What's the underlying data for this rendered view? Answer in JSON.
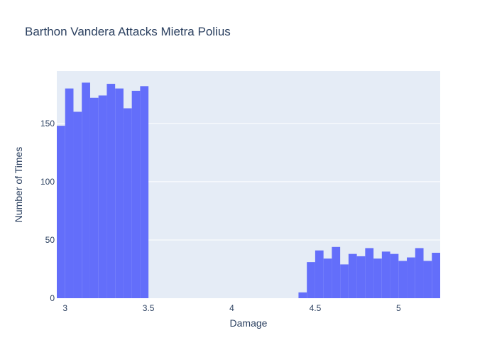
{
  "chart_data": {
    "type": "bar",
    "title": "Barthon Vandera Attacks Mietra Polius",
    "xlabel": "Damage",
    "ylabel": "Number of Times",
    "xlim": [
      2.95,
      5.25
    ],
    "ylim": [
      0,
      195
    ],
    "bin_width": 0.05,
    "bins": [
      {
        "x": 2.95,
        "y": 148
      },
      {
        "x": 3.0,
        "y": 180
      },
      {
        "x": 3.05,
        "y": 160
      },
      {
        "x": 3.1,
        "y": 185
      },
      {
        "x": 3.15,
        "y": 172
      },
      {
        "x": 3.2,
        "y": 174
      },
      {
        "x": 3.25,
        "y": 184
      },
      {
        "x": 3.3,
        "y": 180
      },
      {
        "x": 3.35,
        "y": 163
      },
      {
        "x": 3.4,
        "y": 178
      },
      {
        "x": 3.45,
        "y": 182
      },
      {
        "x": 4.4,
        "y": 5
      },
      {
        "x": 4.45,
        "y": 31
      },
      {
        "x": 4.5,
        "y": 41
      },
      {
        "x": 4.55,
        "y": 34
      },
      {
        "x": 4.6,
        "y": 44
      },
      {
        "x": 4.65,
        "y": 29
      },
      {
        "x": 4.7,
        "y": 38
      },
      {
        "x": 4.75,
        "y": 36
      },
      {
        "x": 4.8,
        "y": 43
      },
      {
        "x": 4.85,
        "y": 34
      },
      {
        "x": 4.9,
        "y": 40
      },
      {
        "x": 4.95,
        "y": 38
      },
      {
        "x": 5.0,
        "y": 32
      },
      {
        "x": 5.05,
        "y": 35
      },
      {
        "x": 5.1,
        "y": 43
      },
      {
        "x": 5.15,
        "y": 32
      },
      {
        "x": 5.2,
        "y": 39
      }
    ],
    "x_ticks": [
      {
        "value": 3,
        "label": "3"
      },
      {
        "value": 3.5,
        "label": "3.5"
      },
      {
        "value": 4,
        "label": "4"
      },
      {
        "value": 4.5,
        "label": "4.5"
      },
      {
        "value": 5,
        "label": "5"
      }
    ],
    "y_ticks": [
      {
        "value": 0,
        "label": "0"
      },
      {
        "value": 50,
        "label": "50"
      },
      {
        "value": 100,
        "label": "100"
      },
      {
        "value": 150,
        "label": "150"
      }
    ],
    "bar_color": "#636efa",
    "plot_bg": "#e5ecf6",
    "grid_color": "#ffffff",
    "grid": true
  }
}
